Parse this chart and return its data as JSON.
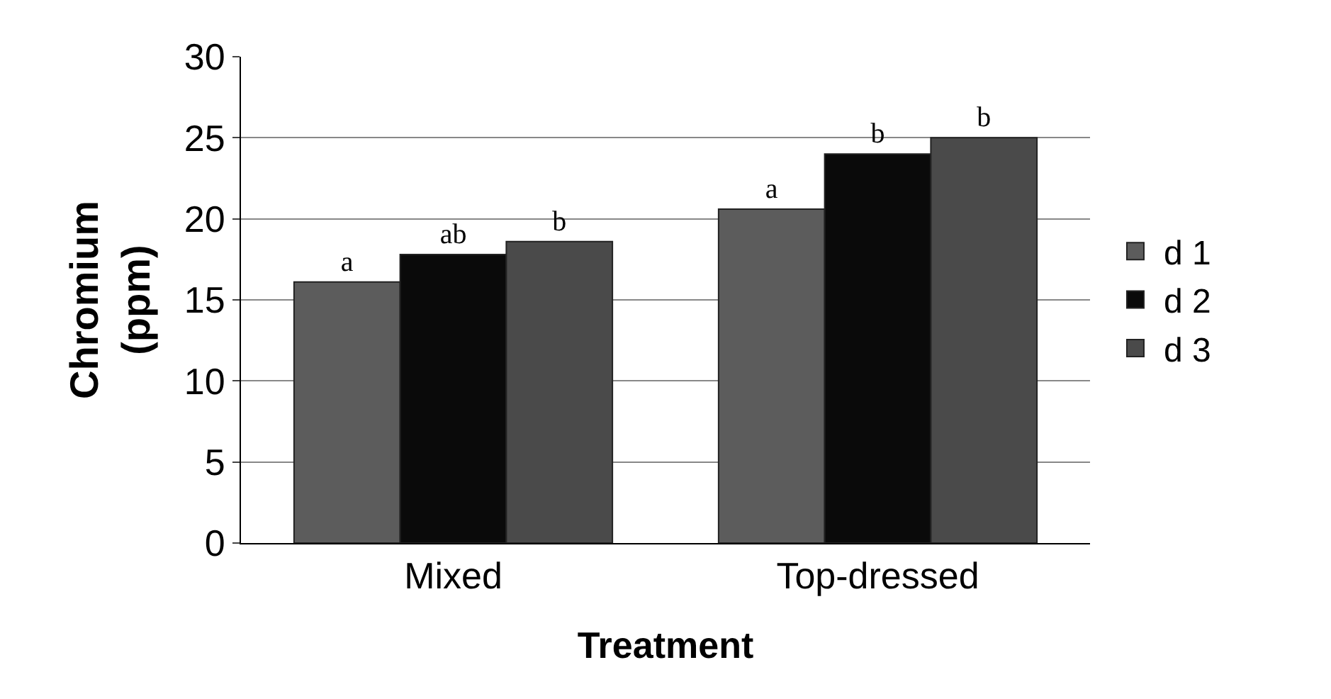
{
  "chart_data": {
    "type": "bar",
    "xlabel": "Treatment",
    "ylabel": "Chromium\n(ppm)",
    "categories": [
      "Mixed",
      "Top-dressed"
    ],
    "series": [
      {
        "name": "d 1",
        "color": "#5c5c5c",
        "values": [
          16.1,
          20.6
        ],
        "value_labels": [
          "a",
          "a"
        ]
      },
      {
        "name": "d 2",
        "color": "#0a0a0a",
        "values": [
          17.8,
          24.0
        ],
        "value_labels": [
          "ab",
          "b"
        ]
      },
      {
        "name": "d 3",
        "color": "#4a4a4a",
        "values": [
          18.6,
          25.0
        ],
        "value_labels": [
          "b",
          "b"
        ]
      }
    ],
    "ylim": [
      0,
      30
    ],
    "yticks": [
      0,
      5,
      10,
      15,
      20,
      25,
      30
    ],
    "grid": "y",
    "legend": "right"
  }
}
